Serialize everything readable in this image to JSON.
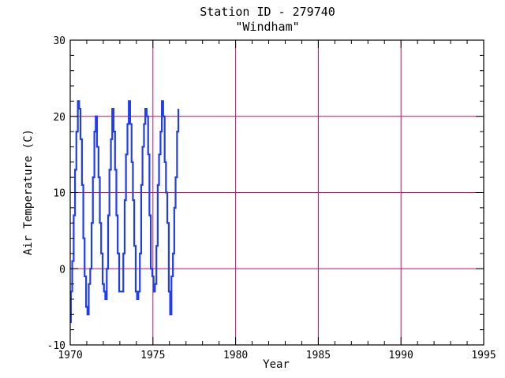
{
  "chart_data": {
    "type": "line",
    "title": "Station ID - 279740",
    "subtitle": "\"Windham\"",
    "xlabel": "Year",
    "ylabel": "Air Temperature (C)",
    "xlim": [
      1970,
      1995
    ],
    "ylim": [
      -10,
      30
    ],
    "x_ticks": [
      1970,
      1975,
      1980,
      1985,
      1990,
      1995
    ],
    "y_ticks": [
      -10,
      0,
      10,
      20,
      30
    ],
    "grid": true,
    "colors": {
      "series": "#1f3cf0",
      "grid": "#c0106e",
      "axes": "#000000"
    },
    "series": [
      {
        "x": [
          1970.0,
          1970.04,
          1970.12,
          1970.21,
          1970.29,
          1970.37,
          1970.46,
          1970.54,
          1970.62,
          1970.71,
          1970.79,
          1970.87,
          1970.96,
          1971.04,
          1971.12,
          1971.21,
          1971.29,
          1971.37,
          1971.46,
          1971.54,
          1971.62,
          1971.71,
          1971.79,
          1971.87,
          1971.96,
          1972.04,
          1972.12,
          1972.21,
          1972.29,
          1972.37,
          1972.46,
          1972.54,
          1972.62,
          1972.71,
          1972.79,
          1972.87,
          1972.96,
          1973.04,
          1973.12,
          1973.21,
          1973.29,
          1973.37,
          1973.46,
          1973.54,
          1973.62,
          1973.71,
          1973.79,
          1973.87,
          1973.96,
          1974.04,
          1974.12,
          1974.21,
          1974.29,
          1974.37,
          1974.46,
          1974.54,
          1974.62,
          1974.71,
          1974.79,
          1974.87,
          1974.96,
          1975.04,
          1975.12,
          1975.21,
          1975.29,
          1975.37,
          1975.46,
          1975.54,
          1975.62,
          1975.71,
          1975.79,
          1975.87,
          1975.96,
          1976.04,
          1976.12,
          1976.21,
          1976.29,
          1976.37,
          1976.46,
          1976.54
        ],
        "y": [
          -7,
          -3,
          1,
          7,
          13,
          18,
          22,
          21,
          17,
          11,
          4,
          -1,
          -5,
          -6,
          -2,
          0,
          6,
          12,
          18,
          20,
          16,
          12,
          6,
          2,
          -2,
          -3,
          -4,
          0,
          7,
          13,
          17,
          21,
          18,
          13,
          7,
          2,
          -3,
          -3,
          -3,
          2,
          9,
          15,
          19,
          22,
          19,
          14,
          9,
          3,
          -3,
          -4,
          -3,
          2,
          11,
          16,
          19,
          21,
          20,
          15,
          7,
          0,
          -1,
          -3,
          -2,
          3,
          11,
          15,
          18,
          22,
          20,
          14,
          10,
          6,
          -3,
          -6,
          -1,
          2,
          8,
          12,
          18,
          21
        ]
      }
    ]
  }
}
